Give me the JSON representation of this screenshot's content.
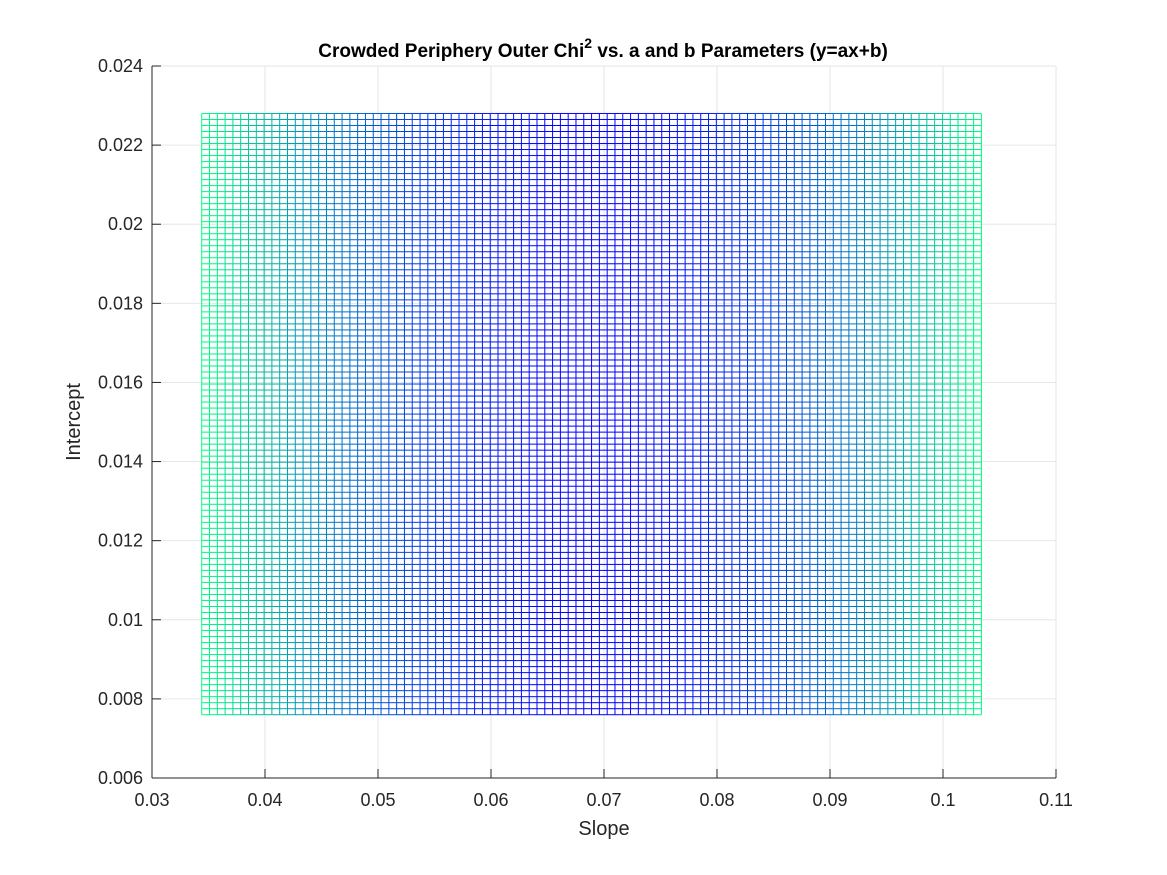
{
  "chart_data": {
    "type": "mesh",
    "title": "Crowded Periphery Outer Chi",
    "title_superscript": "2",
    "title_suffix": " vs. a and b Parameters (y=ax+b)",
    "xlabel": "Slope",
    "ylabel": "Intercept",
    "xlim": [
      0.03,
      0.11
    ],
    "ylim": [
      0.006,
      0.024
    ],
    "xticks": [
      0.03,
      0.04,
      0.05,
      0.06,
      0.07,
      0.08,
      0.09,
      0.1,
      0.11
    ],
    "xtick_labels": [
      "0.03",
      "0.04",
      "0.05",
      "0.06",
      "0.07",
      "0.08",
      "0.09",
      "0.1",
      "0.11"
    ],
    "yticks": [
      0.006,
      0.008,
      0.01,
      0.012,
      0.014,
      0.016,
      0.018,
      0.02,
      0.022,
      0.024
    ],
    "ytick_labels": [
      "0.006",
      "0.008",
      "0.01",
      "0.012",
      "0.014",
      "0.016",
      "0.018",
      "0.02",
      "0.022",
      "0.024"
    ],
    "grid": true,
    "mesh": {
      "x_range": [
        0.0344,
        0.1034
      ],
      "y_range": [
        0.0076,
        0.0228
      ],
      "nx": 101,
      "ny": 101,
      "min_at_x": 0.069,
      "colormap": "winter",
      "colors": {
        "low": "#0000ff",
        "high": "#00ff80"
      }
    }
  }
}
